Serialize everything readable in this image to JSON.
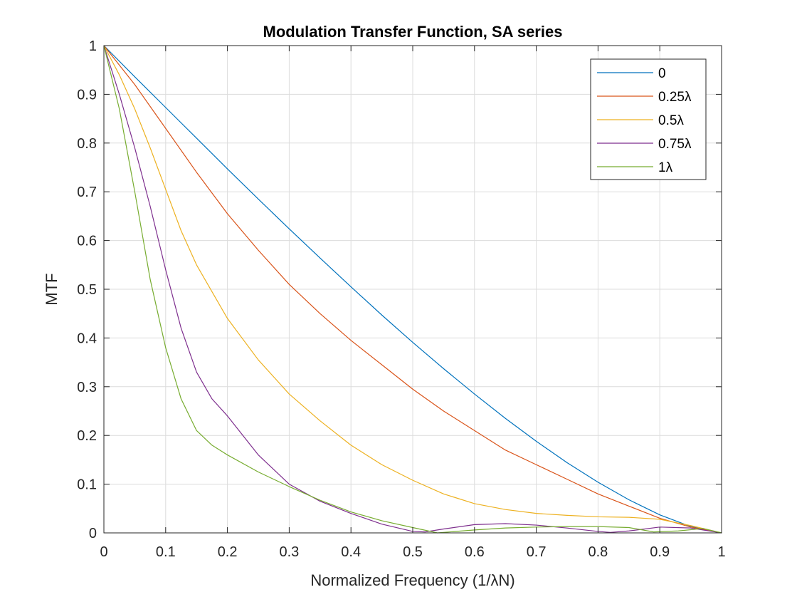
{
  "chart_data": {
    "type": "line",
    "title": "Modulation Transfer Function, SA series",
    "xlabel": "Normalized Frequency (1/λN)",
    "ylabel": "MTF",
    "xlim": [
      0,
      1
    ],
    "ylim": [
      0,
      1
    ],
    "xticks": [
      0,
      0.1,
      0.2,
      0.3,
      0.4,
      0.5,
      0.6,
      0.7,
      0.8,
      0.9,
      1
    ],
    "xtick_labels": [
      "0",
      "0.1",
      "0.2",
      "0.3",
      "0.4",
      "0.5",
      "0.6",
      "0.7",
      "0.8",
      "0.9",
      "1"
    ],
    "yticks": [
      0,
      0.1,
      0.2,
      0.3,
      0.4,
      0.5,
      0.6,
      0.7,
      0.8,
      0.9,
      1
    ],
    "ytick_labels": [
      "0",
      "0.1",
      "0.2",
      "0.3",
      "0.4",
      "0.5",
      "0.6",
      "0.7",
      "0.8",
      "0.9",
      "1"
    ],
    "grid": true,
    "legend_position": "top-right",
    "series": [
      {
        "name": "0",
        "color": "#0072BD",
        "x": [
          0,
          0.05,
          0.1,
          0.15,
          0.2,
          0.25,
          0.3,
          0.35,
          0.4,
          0.45,
          0.5,
          0.55,
          0.6,
          0.65,
          0.7,
          0.75,
          0.8,
          0.85,
          0.9,
          0.95,
          1
        ],
        "y": [
          1,
          0.936,
          0.873,
          0.81,
          0.747,
          0.685,
          0.624,
          0.564,
          0.505,
          0.447,
          0.391,
          0.337,
          0.285,
          0.235,
          0.188,
          0.144,
          0.104,
          0.068,
          0.037,
          0.013,
          0
        ]
      },
      {
        "name": "0.25λ",
        "color": "#D95319",
        "x": [
          0,
          0.05,
          0.1,
          0.15,
          0.2,
          0.25,
          0.3,
          0.35,
          0.4,
          0.45,
          0.5,
          0.55,
          0.6,
          0.65,
          0.7,
          0.75,
          0.8,
          0.85,
          0.9,
          0.95,
          1
        ],
        "y": [
          1,
          0.92,
          0.83,
          0.74,
          0.655,
          0.58,
          0.51,
          0.45,
          0.395,
          0.345,
          0.295,
          0.25,
          0.21,
          0.17,
          0.14,
          0.11,
          0.08,
          0.055,
          0.03,
          0.012,
          0
        ]
      },
      {
        "name": "0.5λ",
        "color": "#EDB120",
        "x": [
          0,
          0.025,
          0.05,
          0.075,
          0.1,
          0.125,
          0.15,
          0.2,
          0.25,
          0.3,
          0.35,
          0.4,
          0.45,
          0.5,
          0.55,
          0.6,
          0.65,
          0.7,
          0.75,
          0.8,
          0.85,
          0.9,
          0.95,
          1
        ],
        "y": [
          1,
          0.94,
          0.87,
          0.79,
          0.705,
          0.62,
          0.55,
          0.44,
          0.355,
          0.285,
          0.23,
          0.18,
          0.14,
          0.108,
          0.08,
          0.06,
          0.048,
          0.04,
          0.036,
          0.033,
          0.032,
          0.028,
          0.015,
          0
        ]
      },
      {
        "name": "0.75λ",
        "color": "#7E2F8E",
        "x": [
          0,
          0.025,
          0.05,
          0.075,
          0.1,
          0.125,
          0.15,
          0.175,
          0.2,
          0.25,
          0.3,
          0.35,
          0.4,
          0.45,
          0.5,
          0.52,
          0.55,
          0.6,
          0.65,
          0.7,
          0.75,
          0.8,
          0.82,
          0.85,
          0.9,
          0.95,
          1
        ],
        "y": [
          1,
          0.9,
          0.79,
          0.67,
          0.54,
          0.42,
          0.33,
          0.275,
          0.24,
          0.16,
          0.1,
          0.065,
          0.04,
          0.018,
          0.003,
          0.002,
          0.008,
          0.017,
          0.019,
          0.016,
          0.01,
          0.003,
          0.001,
          0.004,
          0.012,
          0.01,
          0
        ]
      },
      {
        "name": "1λ",
        "color": "#77AC30",
        "x": [
          0,
          0.025,
          0.05,
          0.075,
          0.1,
          0.125,
          0.15,
          0.175,
          0.2,
          0.25,
          0.3,
          0.35,
          0.4,
          0.45,
          0.5,
          0.54,
          0.6,
          0.65,
          0.7,
          0.75,
          0.8,
          0.85,
          0.89,
          0.93,
          0.97,
          1
        ],
        "y": [
          1,
          0.87,
          0.7,
          0.52,
          0.38,
          0.275,
          0.21,
          0.18,
          0.16,
          0.125,
          0.095,
          0.067,
          0.043,
          0.025,
          0.011,
          0,
          0.006,
          0.01,
          0.012,
          0.013,
          0.013,
          0.011,
          0.002,
          0.004,
          0.009,
          0
        ]
      }
    ]
  }
}
